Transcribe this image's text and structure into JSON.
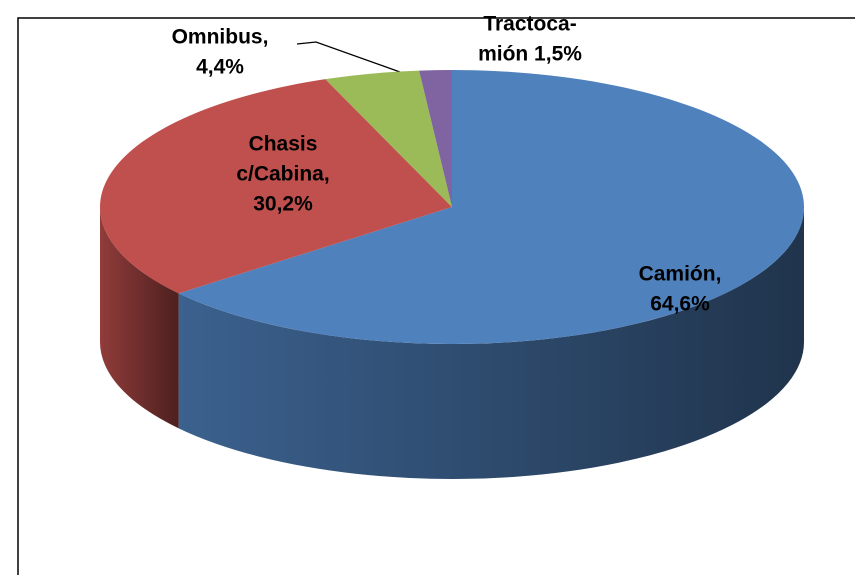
{
  "chart_data": {
    "type": "pie",
    "labels": [
      [
        "Camión,",
        "64,6%"
      ],
      [
        "Chasis",
        "c/Cabina,",
        "30,2%"
      ],
      [
        "Omnibus,",
        "4,4%"
      ],
      [
        "Tractoca-",
        "mión 1,5%"
      ]
    ],
    "values": [
      64.6,
      30.2,
      4.4,
      1.5
    ],
    "colors": [
      "#4f81bd",
      "#c0504d",
      "#9bbb59",
      "#8064a2"
    ],
    "start_angle": 0,
    "direction": "clockwise",
    "three_d": true
  }
}
